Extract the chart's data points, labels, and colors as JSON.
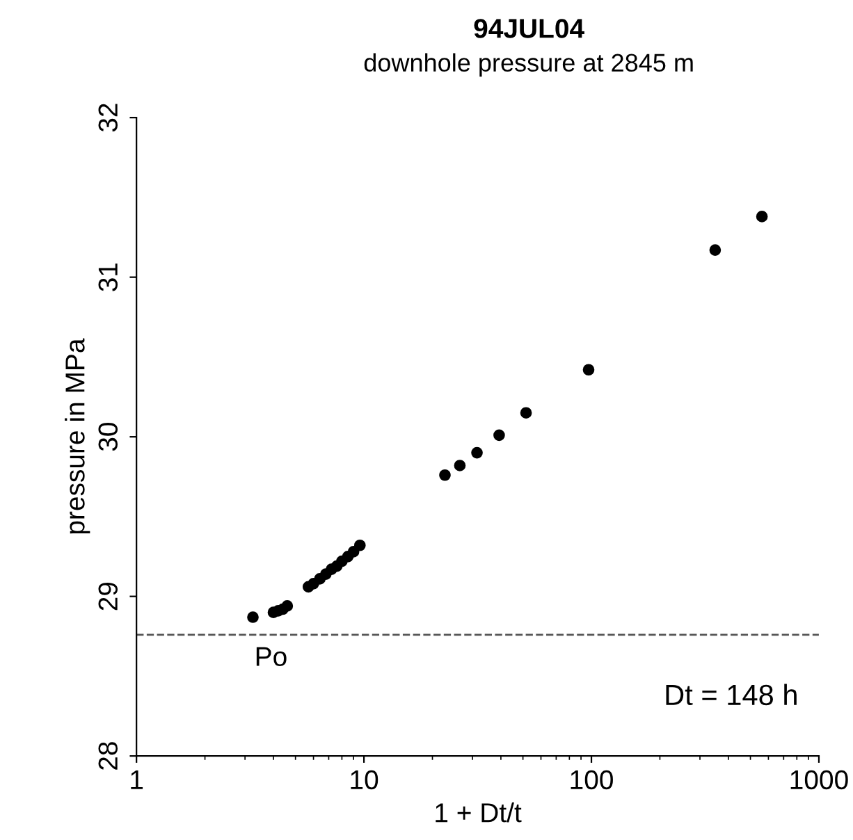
{
  "chart_data": {
    "type": "scatter",
    "title": "94JUL04",
    "subtitle": "downhole pressure at 2845 m",
    "xlabel": "1 + Dt/t",
    "ylabel": "pressure in MPa",
    "x": [
      3.25,
      4.0,
      4.2,
      4.4,
      4.6,
      5.7,
      6.0,
      6.4,
      6.8,
      7.2,
      7.6,
      8.0,
      8.5,
      9.0,
      9.6,
      22.7,
      26.4,
      31.4,
      39.3,
      51.6,
      97.2,
      350,
      562
    ],
    "values": [
      28.87,
      28.9,
      28.91,
      28.92,
      28.94,
      29.06,
      29.08,
      29.11,
      29.14,
      29.17,
      29.19,
      29.22,
      29.25,
      29.28,
      29.32,
      29.76,
      29.82,
      29.9,
      30.01,
      30.15,
      30.42,
      31.17,
      31.38
    ],
    "color": "#000000",
    "marker": "circle",
    "log": "x",
    "xlim": [
      1,
      1000
    ],
    "xticks": [
      1,
      10,
      100,
      1000
    ],
    "ylim": [
      28,
      32
    ],
    "yticks": [
      28,
      29,
      30,
      31,
      32
    ],
    "ref_lines": [
      {
        "axis": "y",
        "value": 28.76,
        "label": "Po",
        "color": "#555555",
        "line_style": "dashed"
      }
    ],
    "annotations": [
      "Dt = 148 h"
    ],
    "grid": false,
    "legend": false
  }
}
